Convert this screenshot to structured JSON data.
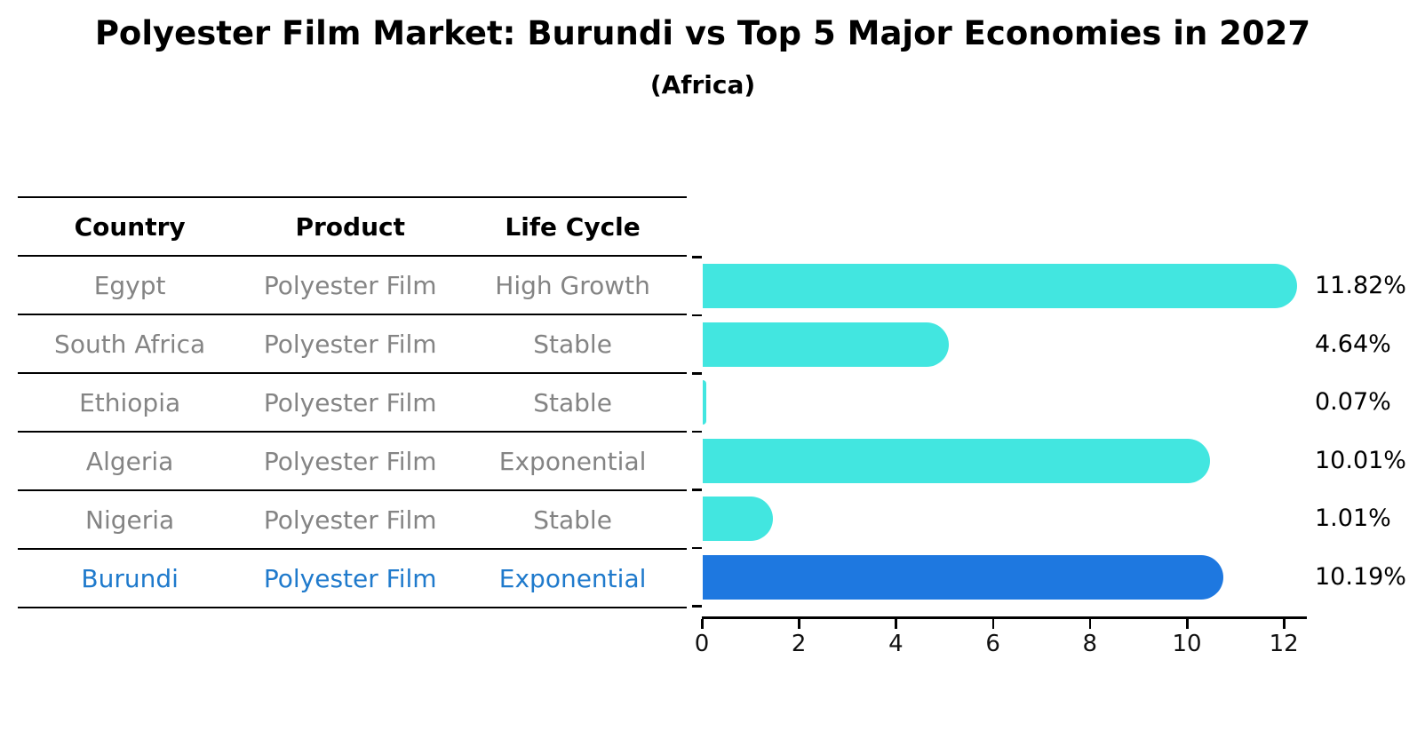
{
  "title": "Polyester Film Market: Burundi vs Top 5 Major Economies in 2027",
  "subtitle": "(Africa)",
  "table": {
    "headers": [
      "Country",
      "Product",
      "Life Cycle"
    ],
    "rows": [
      {
        "country": "Egypt",
        "product": "Polyester Film",
        "life_cycle": "High Growth",
        "highlight": false
      },
      {
        "country": "South Africa",
        "product": "Polyester Film",
        "life_cycle": "Stable",
        "highlight": false
      },
      {
        "country": "Ethiopia",
        "product": "Polyester Film",
        "life_cycle": "Stable",
        "highlight": false
      },
      {
        "country": "Algeria",
        "product": "Polyester Film",
        "life_cycle": "Exponential",
        "highlight": false
      },
      {
        "country": "Nigeria",
        "product": "Polyester Film",
        "life_cycle": "Stable",
        "highlight": false
      },
      {
        "country": "Burundi",
        "product": "Polyester Film",
        "life_cycle": "Exponential",
        "highlight": true
      }
    ]
  },
  "chart_data": {
    "type": "bar",
    "orientation": "horizontal",
    "categories": [
      "Egypt",
      "South Africa",
      "Ethiopia",
      "Algeria",
      "Nigeria",
      "Burundi"
    ],
    "values": [
      11.82,
      4.64,
      0.07,
      10.01,
      1.01,
      10.19
    ],
    "value_labels": [
      "11.82%",
      "4.64%",
      "0.07%",
      "10.01%",
      "1.01%",
      "10.19%"
    ],
    "title": "Polyester Film Market: Burundi vs Top 5 Major Economies in 2027",
    "subtitle": "(Africa)",
    "xlabel": "",
    "ylabel": "",
    "xlim": [
      0,
      12.45
    ],
    "xticks": [
      0,
      2,
      4,
      6,
      8,
      10,
      12
    ],
    "grid": false,
    "legend": null,
    "bar_color": "#42E6E0",
    "highlight_index": 5,
    "highlight_bar_color": "#1E78E0",
    "highlight_bar_style": "dotted-border",
    "highlight_text_color": "#1F7ACC"
  },
  "colors": {
    "background": "#FFFFFF",
    "table_text": "#848484",
    "header_text": "#000000",
    "axis": "#000000"
  }
}
